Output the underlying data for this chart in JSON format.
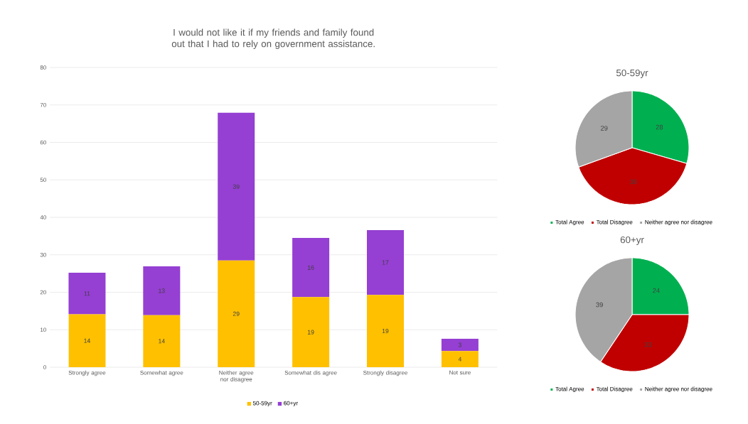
{
  "chart_data": [
    {
      "type": "bar",
      "stacked": true,
      "title": "I would not like it if my friends and family found out that I had to rely on government assistance.",
      "categories": [
        "Strongly agree",
        "Somewhat agree",
        "Neither agree nor disagree",
        "Somewhat dis agree",
        "Strongly disagree",
        "Not sure"
      ],
      "series": [
        {
          "name": "50-59yr",
          "color": "#ffc000",
          "values": [
            14.1,
            13.9,
            28.5,
            18.7,
            19.3,
            4.3
          ],
          "value_labels": [
            "14",
            "14",
            "29",
            "19",
            "19",
            "4"
          ]
        },
        {
          "name": "60+yr",
          "color": "#953fd3",
          "values": [
            11.1,
            13.0,
            39.4,
            15.8,
            17.3,
            3.3
          ],
          "value_labels": [
            "11",
            "13",
            "39",
            "16",
            "17",
            "3"
          ]
        }
      ],
      "ylim": [
        0,
        80
      ],
      "yticks": [
        0,
        10,
        20,
        30,
        40,
        50,
        60,
        70,
        80
      ],
      "grid": "y",
      "legend": "bottom"
    },
    {
      "type": "pie",
      "title": "50-59yr",
      "categories": [
        "Total Agree",
        "Total Disagree",
        "Neither agree nor disagree"
      ],
      "values": [
        28,
        38,
        29
      ],
      "colors": [
        "#00b050",
        "#c00000",
        "#a5a5a5"
      ],
      "data_labels": true,
      "legend": "bottom"
    },
    {
      "type": "pie",
      "title": "60+yr",
      "categories": [
        "Total Agree",
        "Total Disagree",
        "Neither agree nor disagree"
      ],
      "values": [
        24,
        33,
        39
      ],
      "colors": [
        "#00b050",
        "#c00000",
        "#a5a5a5"
      ],
      "data_labels": true,
      "legend": "bottom"
    }
  ]
}
